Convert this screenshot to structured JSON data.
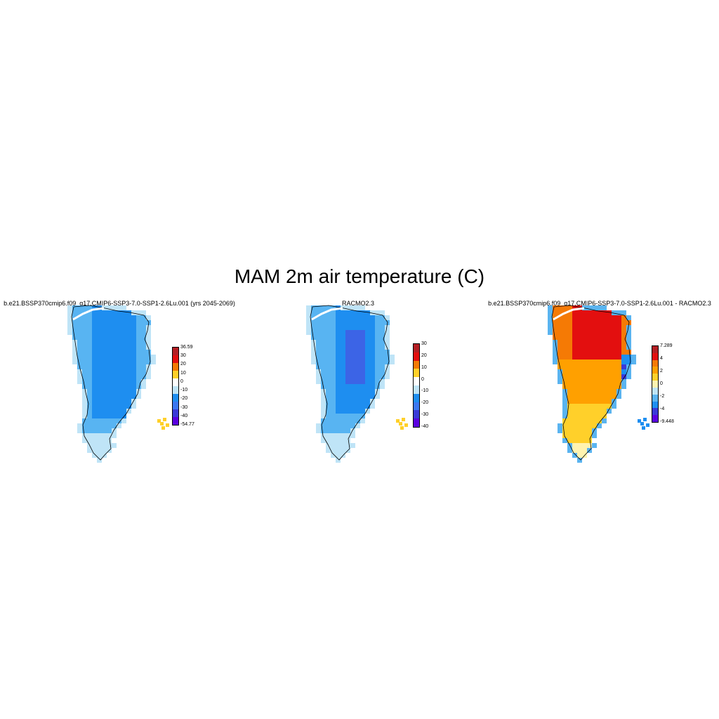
{
  "title": "MAM 2m air temperature (C)",
  "panels": [
    {
      "title": "b.e21.BSSP370cmip6.f09_g17.CMIP6-SSP3-7.0-SSP1-2.6Lu.001 (yrs 2045-2069)",
      "colorbar": {
        "colors": [
          "#b41f24",
          "#e30f0f",
          "#f57a05",
          "#ffd02a",
          "#ffffff",
          "#bfe4f7",
          "#1e8ef0",
          "#3c78f0",
          "#3a3ad8",
          "#5a00e0"
        ],
        "labels": [
          "36.59",
          "30",
          "20",
          "10",
          "0",
          "-10",
          "-20",
          "-30",
          "-40",
          "-54.77"
        ]
      },
      "field": "model"
    },
    {
      "title": "RACMO2.3",
      "colorbar": {
        "colors": [
          "#b41f24",
          "#e30f0f",
          "#f57a05",
          "#ffd02a",
          "#ffffff",
          "#bfe4f7",
          "#1e8ef0",
          "#3c78f0",
          "#3a3ad8",
          "#5a00e0"
        ],
        "labels": [
          "30",
          "20",
          "10",
          "0",
          "-10",
          "-20",
          "-30",
          "-40"
        ]
      },
      "field": "racmo"
    },
    {
      "title": "b.e21.BSSP370cmip6.f09_g17.CMIP6-SSP3-7.0-SSP1-2.6Lu.001 - RACMO2.3",
      "colorbar": {
        "colors": [
          "#b41f24",
          "#e30f0f",
          "#f57a05",
          "#ffa000",
          "#ffd02a",
          "#fff3b0",
          "#bfe4f7",
          "#5ab4f0",
          "#1e8ef0",
          "#3a3ad8",
          "#5a00e0"
        ],
        "labels": [
          "7.289",
          "4",
          "2",
          "0",
          "-2",
          "-4",
          "-9.448"
        ]
      },
      "field": "diff"
    }
  ]
}
